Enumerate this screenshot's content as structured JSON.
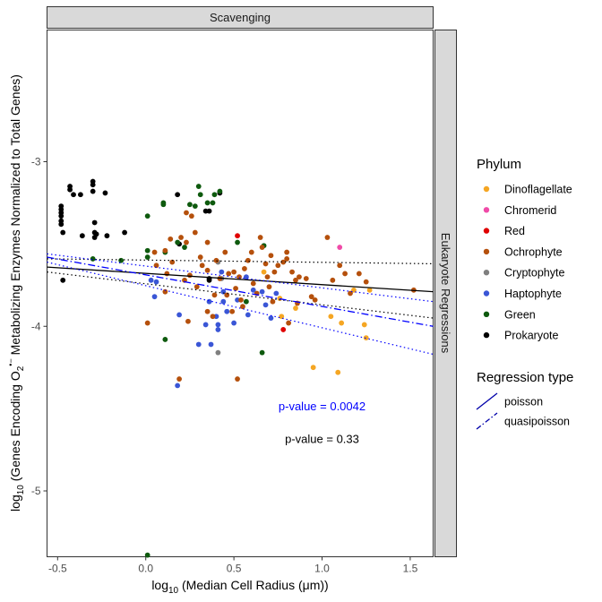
{
  "chart_data": {
    "type": "scatter",
    "facet_top": "Scavenging",
    "facet_right": "Eukaryote Regressions",
    "xlabel_main": "log",
    "xlabel_sub": "10",
    "xlabel_rest": " (Median Cell Radius (μm))",
    "ylabel_main": "log",
    "ylabel_sub": "10",
    "ylabel_mid": " (Genes Encoding  O",
    "ylabel_sub2": "2",
    "ylabel_sup": "•−",
    "ylabel_rest": " Metabolizing Enzymes Normalized to Total Genes)",
    "xlim": [
      -0.56,
      1.63
    ],
    "ylim": [
      -5.4,
      -2.2
    ],
    "x_ticks": [
      -0.5,
      0.0,
      0.5,
      1.0,
      1.5
    ],
    "x_tick_labels": [
      "-0.5",
      "0.0",
      "0.5",
      "1.0",
      "1.5"
    ],
    "y_ticks": [
      -3,
      -4,
      -5
    ],
    "y_tick_labels": [
      "-3",
      "-4",
      "-5"
    ],
    "grid": false,
    "legend_placement": "right",
    "phylum_legend": {
      "title": "Phylum",
      "items": [
        {
          "name": "Dinoflagellate",
          "color": "#F5A623"
        },
        {
          "name": "Chromerid",
          "color": "#F04BA8"
        },
        {
          "name": "Red",
          "color": "#E00000"
        },
        {
          "name": "Ochrophyte",
          "color": "#B5500C"
        },
        {
          "name": "Cryptophyte",
          "color": "#7F7F7F"
        },
        {
          "name": "Haptophyte",
          "color": "#3A56D6"
        },
        {
          "name": "Green",
          "color": "#0E5A0E"
        },
        {
          "name": "Prokaryote",
          "color": "#000000"
        }
      ]
    },
    "regression_legend": {
      "title": "Regression type",
      "items": [
        {
          "name": "poisson",
          "linetype": "solid"
        },
        {
          "name": "quasipoisson",
          "linetype": "dashdot"
        }
      ]
    },
    "annotations": [
      {
        "text": "p-value = 0.0042",
        "x": 1.0,
        "y": -4.51,
        "color": "#0000FF"
      },
      {
        "text": "p-value = 0.33",
        "x": 1.0,
        "y": -4.71,
        "color": "#000000"
      }
    ],
    "lines": [
      {
        "name": "black-fit",
        "color": "#000000",
        "dash": "solid",
        "points": [
          [
            -0.56,
            -3.64
          ],
          [
            1.63,
            -3.79
          ]
        ]
      },
      {
        "name": "black-ci-upper",
        "color": "#000000",
        "dash": "dotted",
        "points": [
          [
            -0.56,
            -3.59
          ],
          [
            1.63,
            -3.62
          ]
        ]
      },
      {
        "name": "black-ci-lower",
        "color": "#000000",
        "dash": "dotted",
        "points": [
          [
            -0.56,
            -3.67
          ],
          [
            1.63,
            -3.95
          ]
        ]
      },
      {
        "name": "blue-fit",
        "color": "#0000FF",
        "dash": "dashdot",
        "points": [
          [
            -0.56,
            -3.58
          ],
          [
            1.63,
            -4.0
          ]
        ]
      },
      {
        "name": "blue-ci-upper",
        "color": "#0000FF",
        "dash": "dotted",
        "points": [
          [
            -0.56,
            -3.56
          ],
          [
            1.63,
            -3.85
          ]
        ]
      },
      {
        "name": "blue-ci-lower",
        "color": "#0000FF",
        "dash": "dotted",
        "points": [
          [
            -0.56,
            -3.61
          ],
          [
            1.63,
            -4.17
          ]
        ]
      }
    ],
    "series": [
      {
        "name": "Prokaryote",
        "points": [
          [
            -0.48,
            -3.27
          ],
          [
            -0.48,
            -3.29
          ],
          [
            -0.48,
            -3.31
          ],
          [
            -0.48,
            -3.33
          ],
          [
            -0.48,
            -3.36
          ],
          [
            -0.48,
            -3.38
          ],
          [
            -0.47,
            -3.43
          ],
          [
            -0.47,
            -3.72
          ],
          [
            -0.43,
            -3.15
          ],
          [
            -0.43,
            -3.17
          ],
          [
            -0.41,
            -3.2
          ],
          [
            -0.37,
            -3.2
          ],
          [
            -0.36,
            -3.45
          ],
          [
            -0.3,
            -3.12
          ],
          [
            -0.3,
            -3.14
          ],
          [
            -0.3,
            -3.18
          ],
          [
            -0.29,
            -3.37
          ],
          [
            -0.29,
            -3.43
          ],
          [
            -0.29,
            -3.46
          ],
          [
            -0.28,
            -3.44
          ],
          [
            -0.23,
            -3.19
          ],
          [
            -0.22,
            -3.45
          ],
          [
            -0.12,
            -3.43
          ],
          [
            0.18,
            -3.2
          ],
          [
            0.19,
            -3.5
          ],
          [
            0.34,
            -3.3
          ],
          [
            0.36,
            -3.3
          ],
          [
            0.36,
            -3.71
          ],
          [
            0.36,
            -3.72
          ],
          [
            0.42,
            -3.19
          ]
        ]
      },
      {
        "name": "Green",
        "points": [
          [
            0.01,
            -3.33
          ],
          [
            0.01,
            -3.54
          ],
          [
            0.01,
            -3.58
          ],
          [
            0.01,
            -5.39
          ],
          [
            0.1,
            -3.25
          ],
          [
            0.1,
            -3.26
          ],
          [
            0.11,
            -3.55
          ],
          [
            0.11,
            -4.08
          ],
          [
            0.18,
            -3.49
          ],
          [
            0.22,
            -3.52
          ],
          [
            0.25,
            -3.26
          ],
          [
            0.28,
            -3.27
          ],
          [
            0.3,
            -3.15
          ],
          [
            0.31,
            -3.2
          ],
          [
            0.35,
            -3.25
          ],
          [
            0.38,
            -3.25
          ],
          [
            0.39,
            -3.2
          ],
          [
            0.42,
            -3.18
          ],
          [
            0.52,
            -3.49
          ],
          [
            0.57,
            -3.85
          ],
          [
            0.66,
            -4.16
          ],
          [
            0.67,
            -3.51
          ],
          [
            -0.3,
            -3.59
          ],
          [
            -0.14,
            -3.6
          ]
        ]
      },
      {
        "name": "Haptophyte",
        "points": [
          [
            0.03,
            -3.72
          ],
          [
            0.06,
            -3.73
          ],
          [
            0.05,
            -3.82
          ],
          [
            0.19,
            -3.93
          ],
          [
            0.18,
            -4.36
          ],
          [
            0.3,
            -4.11
          ],
          [
            0.34,
            -3.99
          ],
          [
            0.36,
            -3.85
          ],
          [
            0.37,
            -4.11
          ],
          [
            0.4,
            -3.94
          ],
          [
            0.41,
            -3.99
          ],
          [
            0.41,
            -4.02
          ],
          [
            0.43,
            -3.67
          ],
          [
            0.44,
            -3.79
          ],
          [
            0.44,
            -3.85
          ],
          [
            0.46,
            -3.91
          ],
          [
            0.52,
            -3.84
          ],
          [
            0.57,
            -3.7
          ],
          [
            0.58,
            -3.93
          ],
          [
            0.61,
            -3.78
          ],
          [
            0.66,
            -3.79
          ],
          [
            0.68,
            -3.87
          ],
          [
            0.71,
            -3.95
          ],
          [
            0.74,
            -3.8
          ],
          [
            0.5,
            -3.98
          ]
        ]
      },
      {
        "name": "Cryptophyte",
        "points": [
          [
            0.41,
            -3.61
          ],
          [
            0.41,
            -4.16
          ],
          [
            0.43,
            -3.71
          ]
        ]
      },
      {
        "name": "Red",
        "points": [
          [
            0.52,
            -3.45
          ],
          [
            0.78,
            -4.02
          ]
        ]
      },
      {
        "name": "Chromerid",
        "points": [
          [
            1.1,
            -3.52
          ]
        ]
      },
      {
        "name": "Dinoflagellate",
        "points": [
          [
            0.67,
            -3.67
          ],
          [
            0.76,
            -3.83
          ],
          [
            0.77,
            -3.94
          ],
          [
            0.95,
            -4.25
          ],
          [
            1.05,
            -3.94
          ],
          [
            1.09,
            -4.28
          ],
          [
            1.11,
            -3.98
          ],
          [
            1.18,
            -3.78
          ],
          [
            1.24,
            -3.99
          ],
          [
            1.25,
            -4.07
          ],
          [
            1.27,
            -3.78
          ],
          [
            0.85,
            -3.89
          ]
        ]
      },
      {
        "name": "Ochrophyte",
        "points": [
          [
            0.01,
            -3.98
          ],
          [
            0.05,
            -3.55
          ],
          [
            0.06,
            -3.63
          ],
          [
            0.11,
            -3.54
          ],
          [
            0.11,
            -3.79
          ],
          [
            0.14,
            -3.47
          ],
          [
            0.15,
            -3.61
          ],
          [
            0.12,
            -3.68
          ],
          [
            0.2,
            -3.46
          ],
          [
            0.22,
            -3.72
          ],
          [
            0.23,
            -3.31
          ],
          [
            0.23,
            -3.49
          ],
          [
            0.24,
            -3.97
          ],
          [
            0.25,
            -3.69
          ],
          [
            0.26,
            -3.33
          ],
          [
            0.28,
            -3.43
          ],
          [
            0.29,
            -3.76
          ],
          [
            0.31,
            -3.58
          ],
          [
            0.32,
            -3.63
          ],
          [
            0.35,
            -3.49
          ],
          [
            0.35,
            -3.66
          ],
          [
            0.35,
            -3.91
          ],
          [
            0.38,
            -3.94
          ],
          [
            0.39,
            -3.81
          ],
          [
            0.4,
            -3.6
          ],
          [
            0.42,
            -3.71
          ],
          [
            0.45,
            -3.55
          ],
          [
            0.46,
            -3.81
          ],
          [
            0.47,
            -3.68
          ],
          [
            0.49,
            -3.91
          ],
          [
            0.5,
            -3.67
          ],
          [
            0.51,
            -3.77
          ],
          [
            0.52,
            -4.32
          ],
          [
            0.53,
            -3.7
          ],
          [
            0.54,
            -3.84
          ],
          [
            0.55,
            -3.88
          ],
          [
            0.56,
            -3.65
          ],
          [
            0.58,
            -3.6
          ],
          [
            0.6,
            -3.55
          ],
          [
            0.61,
            -3.74
          ],
          [
            0.63,
            -3.8
          ],
          [
            0.65,
            -3.46
          ],
          [
            0.66,
            -3.52
          ],
          [
            0.68,
            -3.62
          ],
          [
            0.69,
            -3.7
          ],
          [
            0.7,
            -3.76
          ],
          [
            0.71,
            -3.57
          ],
          [
            0.72,
            -3.85
          ],
          [
            0.73,
            -3.67
          ],
          [
            0.75,
            -3.63
          ],
          [
            0.78,
            -3.61
          ],
          [
            0.8,
            -3.55
          ],
          [
            0.8,
            -3.59
          ],
          [
            0.81,
            -3.98
          ],
          [
            0.83,
            -3.67
          ],
          [
            0.85,
            -3.72
          ],
          [
            0.86,
            -3.86
          ],
          [
            0.87,
            -3.7
          ],
          [
            0.91,
            -3.71
          ],
          [
            0.94,
            -3.82
          ],
          [
            0.96,
            -3.84
          ],
          [
            1.03,
            -3.46
          ],
          [
            1.06,
            -3.72
          ],
          [
            1.1,
            -3.63
          ],
          [
            1.13,
            -3.68
          ],
          [
            1.16,
            -3.8
          ],
          [
            1.21,
            -3.68
          ],
          [
            1.25,
            -3.73
          ],
          [
            1.52,
            -3.78
          ],
          [
            0.19,
            -4.32
          ]
        ]
      }
    ]
  }
}
